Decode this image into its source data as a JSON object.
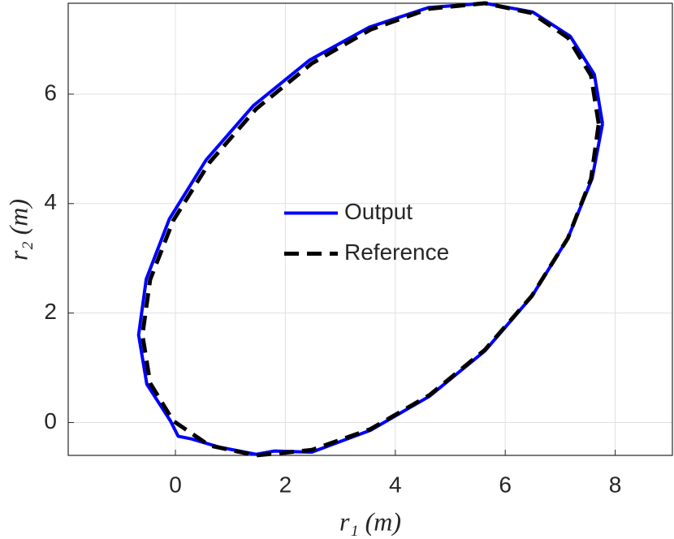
{
  "chart_data": {
    "type": "line",
    "xlabel": "r₁ (m)",
    "ylabel": "r₂ (m)",
    "xlim": [
      -1.95,
      9.04
    ],
    "ylim": [
      -0.6,
      7.66
    ],
    "xticks": [
      0,
      2,
      4,
      6,
      8
    ],
    "yticks": [
      0,
      2,
      4,
      6
    ],
    "grid": true,
    "legend_position": "center",
    "series": [
      {
        "name": "Output",
        "color": "#0000ff",
        "line_style": "solid",
        "x": [
          7.77,
          7.62,
          7.18,
          6.5,
          5.63,
          4.6,
          3.52,
          2.44,
          1.42,
          0.56,
          -0.11,
          -0.53,
          -0.67,
          -0.52,
          -0.09,
          0.05,
          0.3,
          0.8,
          1.47,
          1.8,
          2.48,
          3.55,
          4.62,
          5.63,
          6.48,
          7.14,
          7.58,
          7.77
        ],
        "values": [
          5.46,
          6.36,
          7.06,
          7.5,
          7.66,
          7.58,
          7.22,
          6.62,
          5.79,
          4.8,
          3.72,
          2.62,
          1.6,
          0.7,
          0.03,
          -0.25,
          -0.3,
          -0.45,
          -0.58,
          -0.52,
          -0.54,
          -0.14,
          0.48,
          1.31,
          2.3,
          3.37,
          4.46,
          5.46
        ]
      },
      {
        "name": "Reference",
        "color": "#000000",
        "line_style": "dashed",
        "x": [
          7.7,
          7.56,
          7.14,
          6.48,
          5.63,
          4.62,
          3.55,
          2.48,
          1.47,
          0.62,
          -0.04,
          -0.46,
          -0.6,
          -0.46,
          -0.04,
          0.62,
          1.47,
          2.48,
          3.55,
          4.62,
          5.63,
          6.48,
          7.14,
          7.56,
          7.7
        ],
        "values": [
          5.46,
          6.34,
          7.03,
          7.48,
          7.66,
          7.56,
          7.18,
          6.56,
          5.73,
          4.75,
          3.69,
          2.61,
          1.6,
          0.72,
          0.03,
          -0.42,
          -0.6,
          -0.5,
          -0.12,
          0.5,
          1.33,
          2.31,
          3.37,
          4.45,
          5.46
        ]
      }
    ]
  }
}
